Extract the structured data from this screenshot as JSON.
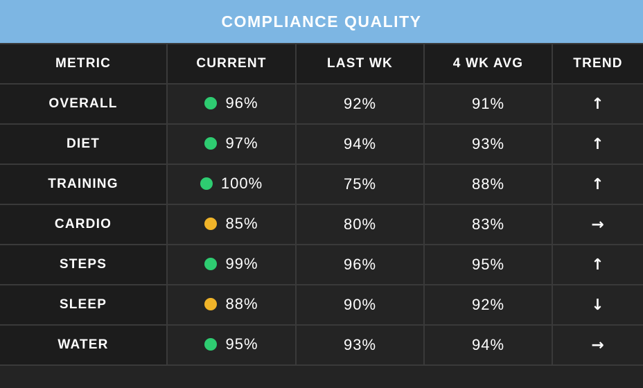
{
  "title": "COMPLIANCE QUALITY",
  "columns": [
    "METRIC",
    "CURRENT",
    "LAST WK",
    "4 WK AVG",
    "TREND"
  ],
  "status_colors": {
    "green": "#2ecc71",
    "yellow": "#f0b429"
  },
  "trend_icons": {
    "up": "↑",
    "right": "→",
    "down": "↓"
  },
  "rows": [
    {
      "metric": "OVERALL",
      "current": "96%",
      "status": "green",
      "last_wk": "92%",
      "avg_4wk": "91%",
      "trend": "↑",
      "trend_icon": "arrow-up-icon"
    },
    {
      "metric": "DIET",
      "current": "97%",
      "status": "green",
      "last_wk": "94%",
      "avg_4wk": "93%",
      "trend": "↑",
      "trend_icon": "arrow-up-icon"
    },
    {
      "metric": "TRAINING",
      "current": "100%",
      "status": "green",
      "last_wk": "75%",
      "avg_4wk": "88%",
      "trend": "↑",
      "trend_icon": "arrow-up-icon"
    },
    {
      "metric": "CARDIO",
      "current": "85%",
      "status": "yellow",
      "last_wk": "80%",
      "avg_4wk": "83%",
      "trend": "→",
      "trend_icon": "arrow-right-icon"
    },
    {
      "metric": "STEPS",
      "current": "99%",
      "status": "green",
      "last_wk": "96%",
      "avg_4wk": "95%",
      "trend": "↑",
      "trend_icon": "arrow-up-icon"
    },
    {
      "metric": "SLEEP",
      "current": "88%",
      "status": "yellow",
      "last_wk": "90%",
      "avg_4wk": "92%",
      "trend": "↓",
      "trend_icon": "arrow-down-icon"
    },
    {
      "metric": "WATER",
      "current": "95%",
      "status": "green",
      "last_wk": "93%",
      "avg_4wk": "94%",
      "trend": "→",
      "trend_icon": "arrow-right-icon"
    }
  ]
}
